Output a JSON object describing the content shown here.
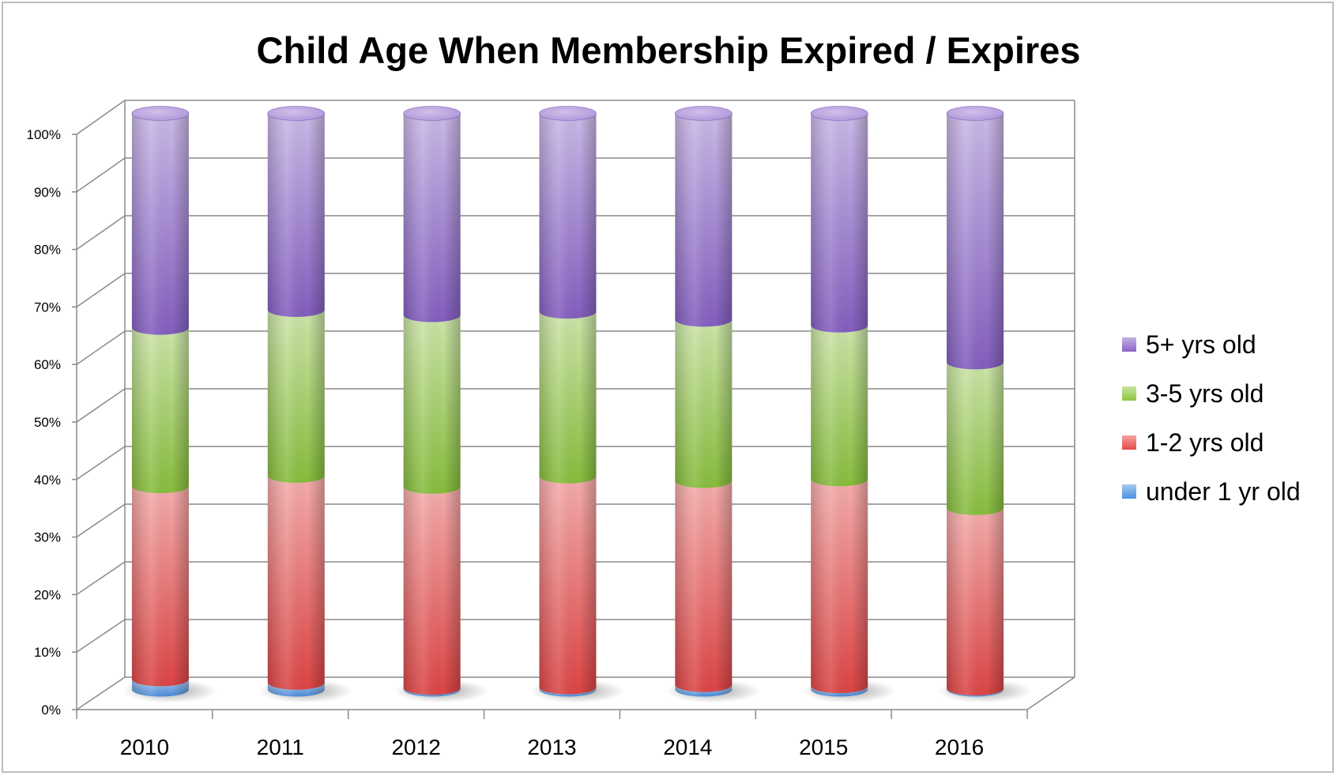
{
  "chart_data": {
    "type": "bar",
    "stacked": true,
    "percent_stacked": true,
    "style": "3d-cylinder",
    "title": "Child Age When Membership Expired / Expires",
    "categories": [
      "2010",
      "2011",
      "2012",
      "2013",
      "2014",
      "2015",
      "2016"
    ],
    "series": [
      {
        "name": "under 1 yr old",
        "color": "#4a90e2",
        "values": [
          1.8,
          1.2,
          0.3,
          0.4,
          0.8,
          0.6,
          0.2
        ]
      },
      {
        "name": "1-2 yrs old",
        "color": "#e84848",
        "values": [
          33.5,
          35.9,
          34.9,
          36.6,
          35.4,
          35.9,
          31.3
        ]
      },
      {
        "name": "3-5 yrs old",
        "color": "#8ec63f",
        "values": [
          27.5,
          28.8,
          29.8,
          28.6,
          28.0,
          26.7,
          25.3
        ]
      },
      {
        "name": "5+ yrs old",
        "color": "#8a63c9",
        "values": [
          37.2,
          34.1,
          35.0,
          34.4,
          35.8,
          36.8,
          43.2
        ]
      }
    ],
    "yticks": [
      "0%",
      "10%",
      "20%",
      "30%",
      "40%",
      "50%",
      "60%",
      "70%",
      "80%",
      "90%",
      "100%"
    ],
    "ylim": [
      0,
      100
    ],
    "grid": true,
    "legend": "right"
  }
}
